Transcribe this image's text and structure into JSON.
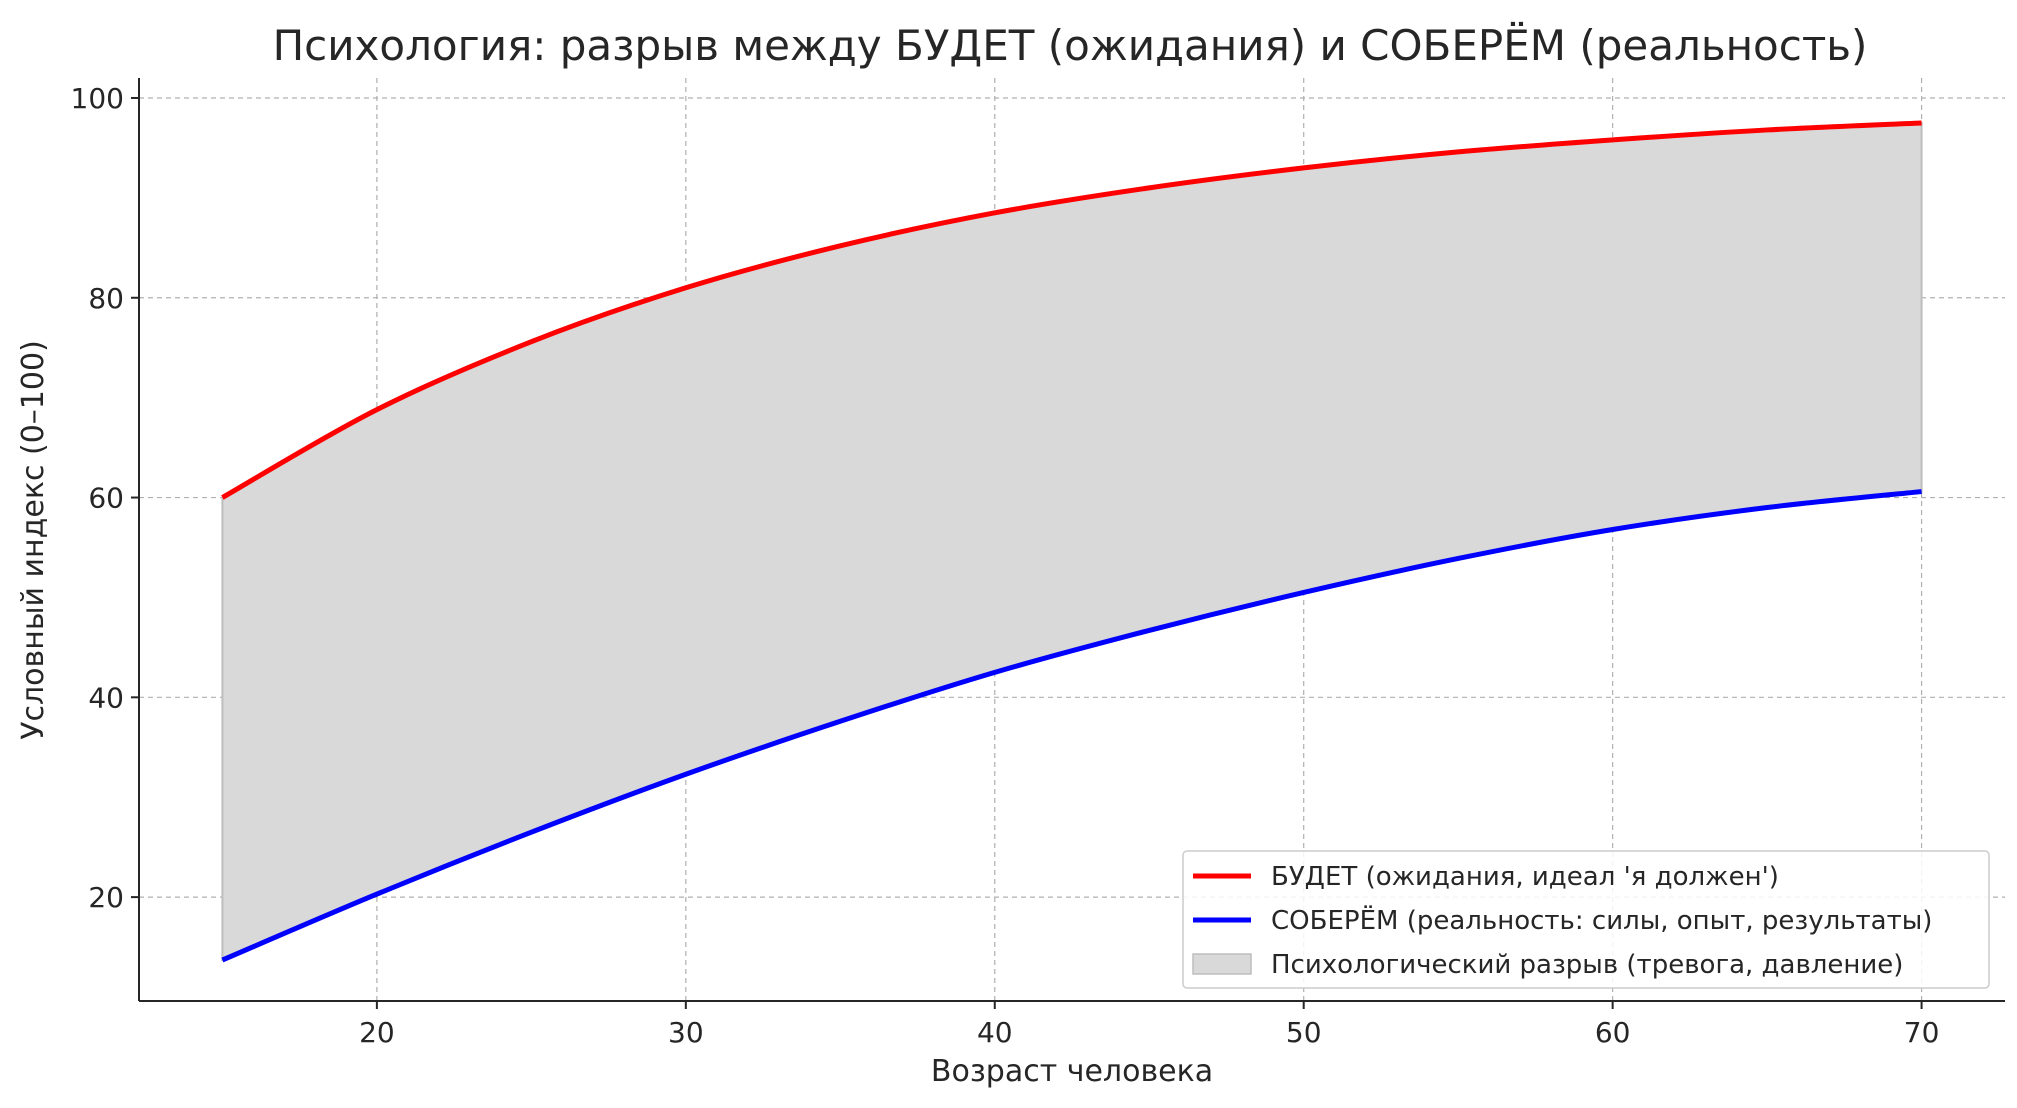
{
  "chart_data": {
    "type": "line",
    "title": "Психология: разрыв между БУДЕТ (ожидания) и СОБЕРЁМ (реальность)",
    "xlabel": "Возраст человека",
    "ylabel": "Условный индекс (0–100)",
    "xlim": [
      12.3,
      72.7
    ],
    "ylim": [
      9.6,
      102.0
    ],
    "xticks": [
      20,
      30,
      40,
      50,
      60,
      70
    ],
    "yticks": [
      20,
      40,
      60,
      80,
      100
    ],
    "grid": true,
    "legend_position": "bottom-right",
    "x": [
      15,
      20,
      25,
      30,
      35,
      40,
      45,
      50,
      55,
      60,
      65,
      70
    ],
    "series": [
      {
        "name": "БУДЕТ (ожидания, идеал 'я должен')",
        "color": "#ff0000",
        "values": [
          60.0,
          68.8,
          75.6,
          81.0,
          85.2,
          88.5,
          91.0,
          93.0,
          94.6,
          95.8,
          96.8,
          97.5
        ]
      },
      {
        "name": "СОБЕРЁМ (реальность: силы, опыт, результаты)",
        "color": "#0000ff",
        "values": [
          13.7,
          20.3,
          26.5,
          32.3,
          37.6,
          42.5,
          46.7,
          50.5,
          53.9,
          56.8,
          59.0,
          60.6
        ]
      }
    ],
    "fill_between": {
      "name": "Психологический разрыв (тревога, давление)",
      "color": "#d9d9d9"
    }
  }
}
